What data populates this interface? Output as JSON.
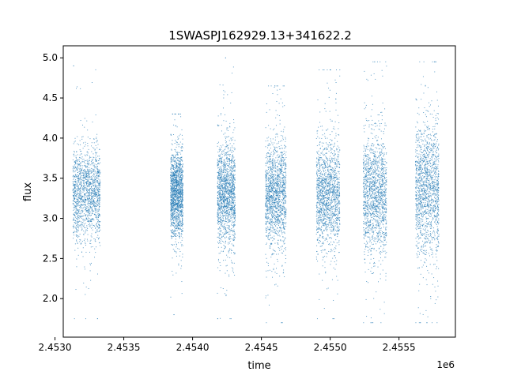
{
  "chart_data": {
    "type": "scatter",
    "title": "1SWASPJ162929.13+341622.2",
    "xlabel": "time",
    "ylabel": "flux",
    "x_offset_label": "1e6",
    "xlim": [
      2453060,
      2455910
    ],
    "ylim": [
      1.52,
      5.15
    ],
    "grid": false,
    "legend": "none",
    "x_ticks": [
      2453000,
      2453500,
      2454000,
      2454500,
      2455000,
      2455500
    ],
    "x_tick_labels": [
      "2.4530",
      "2.4535",
      "2.4540",
      "2.4545",
      "2.4550",
      "2.4555"
    ],
    "y_ticks": [
      2.0,
      2.5,
      3.0,
      3.5,
      4.0,
      4.5,
      5.0
    ],
    "y_tick_labels": [
      "2.0",
      "2.5",
      "3.0",
      "3.5",
      "4.0",
      "4.5",
      "5.0"
    ],
    "series": [
      {
        "marker_color": "#1f77b4",
        "observing_seasons": [
          {
            "start": 2453130,
            "end": 2453330,
            "median_flux": 3.3,
            "core_range": [
              2.8,
              3.8
            ],
            "min_flux": 1.75,
            "max_flux": 4.9
          },
          {
            "start": 2453840,
            "end": 2453930,
            "median_flux": 3.3,
            "core_range": [
              2.85,
              3.8
            ],
            "min_flux": 1.8,
            "max_flux": 4.3
          },
          {
            "start": 2454180,
            "end": 2454310,
            "median_flux": 3.3,
            "core_range": [
              2.75,
              3.85
            ],
            "min_flux": 1.75,
            "max_flux": 5.0
          },
          {
            "start": 2454530,
            "end": 2454680,
            "median_flux": 3.3,
            "core_range": [
              2.75,
              3.9
            ],
            "min_flux": 1.7,
            "max_flux": 4.65
          },
          {
            "start": 2454900,
            "end": 2455070,
            "median_flux": 3.3,
            "core_range": [
              2.7,
              3.9
            ],
            "min_flux": 1.75,
            "max_flux": 4.85
          },
          {
            "start": 2455240,
            "end": 2455410,
            "median_flux": 3.3,
            "core_range": [
              2.65,
              3.95
            ],
            "min_flux": 1.7,
            "max_flux": 4.95
          },
          {
            "start": 2455620,
            "end": 2455790,
            "median_flux": 3.35,
            "core_range": [
              2.6,
              4.05
            ],
            "min_flux": 1.7,
            "max_flux": 4.95
          }
        ]
      }
    ]
  }
}
